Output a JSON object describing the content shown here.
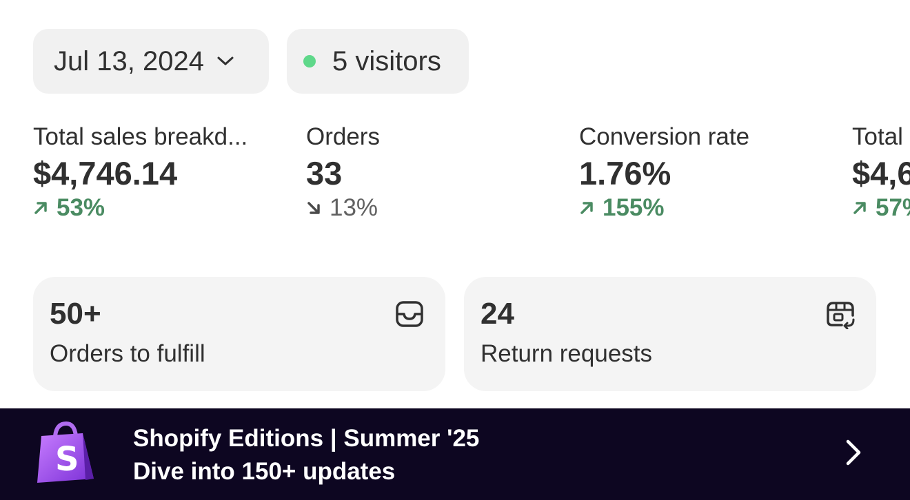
{
  "header": {
    "date": "Jul 13, 2024",
    "visitors": "5 visitors",
    "live_dot_color": "#5fd88a"
  },
  "metrics": [
    {
      "label": "Total sales breakd...",
      "value": "$4,746.14",
      "change": "53%",
      "direction": "up"
    },
    {
      "label": "Orders",
      "value": "33",
      "change": "13%",
      "direction": "down"
    },
    {
      "label": "Conversion rate",
      "value": "1.76%",
      "change": "155%",
      "direction": "up"
    },
    {
      "label": "Total",
      "value": "$4,6",
      "change": "57%",
      "direction": "up"
    }
  ],
  "cards": [
    {
      "value": "50+",
      "label": "Orders to fulfill",
      "icon": "inbox-icon"
    },
    {
      "value": "24",
      "label": "Return requests",
      "icon": "return-box-icon"
    }
  ],
  "banner": {
    "title": "Shopify Editions | Summer '25",
    "subtitle": "Dive into 150+ updates",
    "logo": "shopify-bag-logo",
    "background": "#0d0621"
  },
  "colors": {
    "positive": "#4a8b62",
    "neutral_change": "#616161",
    "chip_bg": "#f1f1f1",
    "card_bg": "#f4f4f4"
  }
}
